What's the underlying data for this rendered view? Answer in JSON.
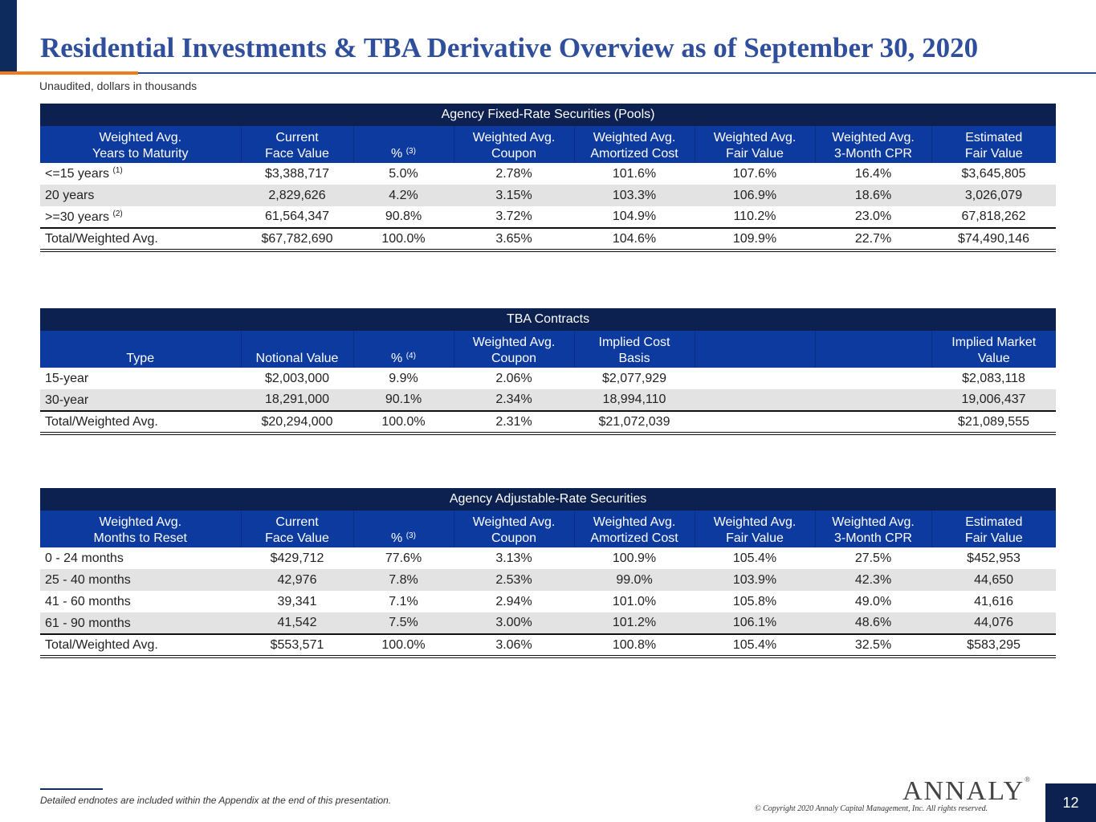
{
  "page": {
    "title": "Residential Investments & TBA Derivative Overview as of September 30, 2020",
    "subtitle": "Unaudited, dollars in thousands",
    "footnote": "Detailed endnotes are included within the Appendix at the end of this presentation.",
    "copyright": "© Copyright 2020 Annaly Capital Management, Inc.  All rights reserved.",
    "logo": "ANNALY",
    "logo_mark": "®",
    "page_number": "12",
    "colors": {
      "navy": "#0d2150",
      "header_blue": "#0d3a9e",
      "title_blue": "#2f4e9c",
      "accent_orange": "#f07c1e",
      "row_shade": "#e3e3e3"
    }
  },
  "tables": {
    "fixed": {
      "title": "Agency Fixed-Rate Securities (Pools)",
      "headers": [
        {
          "l1": "Weighted Avg.",
          "l2": "Years to Maturity",
          "sup": ""
        },
        {
          "l1": "Current",
          "l2": "Face Value",
          "sup": ""
        },
        {
          "l1": "",
          "l2": "%",
          "sup": "(3)"
        },
        {
          "l1": "Weighted Avg.",
          "l2": "Coupon",
          "sup": ""
        },
        {
          "l1": "Weighted Avg.",
          "l2": "Amortized Cost",
          "sup": ""
        },
        {
          "l1": "Weighted Avg.",
          "l2": "Fair Value",
          "sup": ""
        },
        {
          "l1": "Weighted Avg.",
          "l2": "3-Month CPR",
          "sup": ""
        },
        {
          "l1": "Estimated",
          "l2": "Fair Value",
          "sup": ""
        }
      ],
      "rows": [
        {
          "label": "<=15 years",
          "sup": "(1)",
          "cells": [
            "$3,388,717",
            "5.0%",
            "2.78%",
            "101.6%",
            "107.6%",
            "16.4%",
            "$3,645,805"
          ]
        },
        {
          "label": "20 years",
          "sup": "",
          "cells": [
            "2,829,626",
            "4.2%",
            "3.15%",
            "103.3%",
            "106.9%",
            "18.6%",
            "3,026,079"
          ]
        },
        {
          "label": ">=30 years",
          "sup": "(2)",
          "cells": [
            "61,564,347",
            "90.8%",
            "3.72%",
            "104.9%",
            "110.2%",
            "23.0%",
            "67,818,262"
          ]
        }
      ],
      "total": {
        "label": "Total/Weighted Avg.",
        "cells": [
          "$67,782,690",
          "100.0%",
          "3.65%",
          "104.6%",
          "109.9%",
          "22.7%",
          "$74,490,146"
        ]
      }
    },
    "tba": {
      "title": "TBA Contracts",
      "headers": [
        {
          "l1": "",
          "l2": "Type",
          "sup": ""
        },
        {
          "l1": "",
          "l2": "Notional Value",
          "sup": ""
        },
        {
          "l1": "",
          "l2": "%",
          "sup": "(4)"
        },
        {
          "l1": "Weighted Avg.",
          "l2": "Coupon",
          "sup": ""
        },
        {
          "l1": "Implied Cost",
          "l2": "Basis",
          "sup": ""
        },
        {
          "l1": "",
          "l2": "",
          "sup": ""
        },
        {
          "l1": "",
          "l2": "",
          "sup": ""
        },
        {
          "l1": "Implied Market",
          "l2": "Value",
          "sup": ""
        }
      ],
      "rows": [
        {
          "label": "15-year",
          "sup": "",
          "cells": [
            "$2,003,000",
            "9.9%",
            "2.06%",
            "$2,077,929",
            "",
            "",
            "$2,083,118"
          ]
        },
        {
          "label": "30-year",
          "sup": "",
          "cells": [
            "18,291,000",
            "90.1%",
            "2.34%",
            "18,994,110",
            "",
            "",
            "19,006,437"
          ]
        }
      ],
      "total": {
        "label": "Total/Weighted Avg.",
        "cells": [
          "$20,294,000",
          "100.0%",
          "2.31%",
          "$21,072,039",
          "",
          "",
          "$21,089,555"
        ]
      }
    },
    "adjustable": {
      "title": "Agency Adjustable-Rate Securities",
      "headers": [
        {
          "l1": "Weighted Avg.",
          "l2": "Months to Reset",
          "sup": ""
        },
        {
          "l1": "Current",
          "l2": "Face Value",
          "sup": ""
        },
        {
          "l1": "",
          "l2": "%",
          "sup": "(3)"
        },
        {
          "l1": "Weighted Avg.",
          "l2": "Coupon",
          "sup": ""
        },
        {
          "l1": "Weighted Avg.",
          "l2": "Amortized Cost",
          "sup": ""
        },
        {
          "l1": "Weighted Avg.",
          "l2": "Fair Value",
          "sup": ""
        },
        {
          "l1": "Weighted Avg.",
          "l2": "3-Month CPR",
          "sup": ""
        },
        {
          "l1": "Estimated",
          "l2": "Fair Value",
          "sup": ""
        }
      ],
      "rows": [
        {
          "label": "0 - 24 months",
          "sup": "",
          "cells": [
            "$429,712",
            "77.6%",
            "3.13%",
            "100.9%",
            "105.4%",
            "27.5%",
            "$452,953"
          ]
        },
        {
          "label": "25 - 40 months",
          "sup": "",
          "cells": [
            "42,976",
            "7.8%",
            "2.53%",
            "99.0%",
            "103.9%",
            "42.3%",
            "44,650"
          ]
        },
        {
          "label": "41 - 60 months",
          "sup": "",
          "cells": [
            "39,341",
            "7.1%",
            "2.94%",
            "101.0%",
            "105.8%",
            "49.0%",
            "41,616"
          ]
        },
        {
          "label": "61 - 90 months",
          "sup": "",
          "cells": [
            "41,542",
            "7.5%",
            "3.00%",
            "101.2%",
            "106.1%",
            "48.6%",
            "44,076"
          ]
        }
      ],
      "total": {
        "label": "Total/Weighted Avg.",
        "cells": [
          "$553,571",
          "100.0%",
          "3.06%",
          "100.8%",
          "105.4%",
          "32.5%",
          "$583,295"
        ]
      }
    }
  }
}
